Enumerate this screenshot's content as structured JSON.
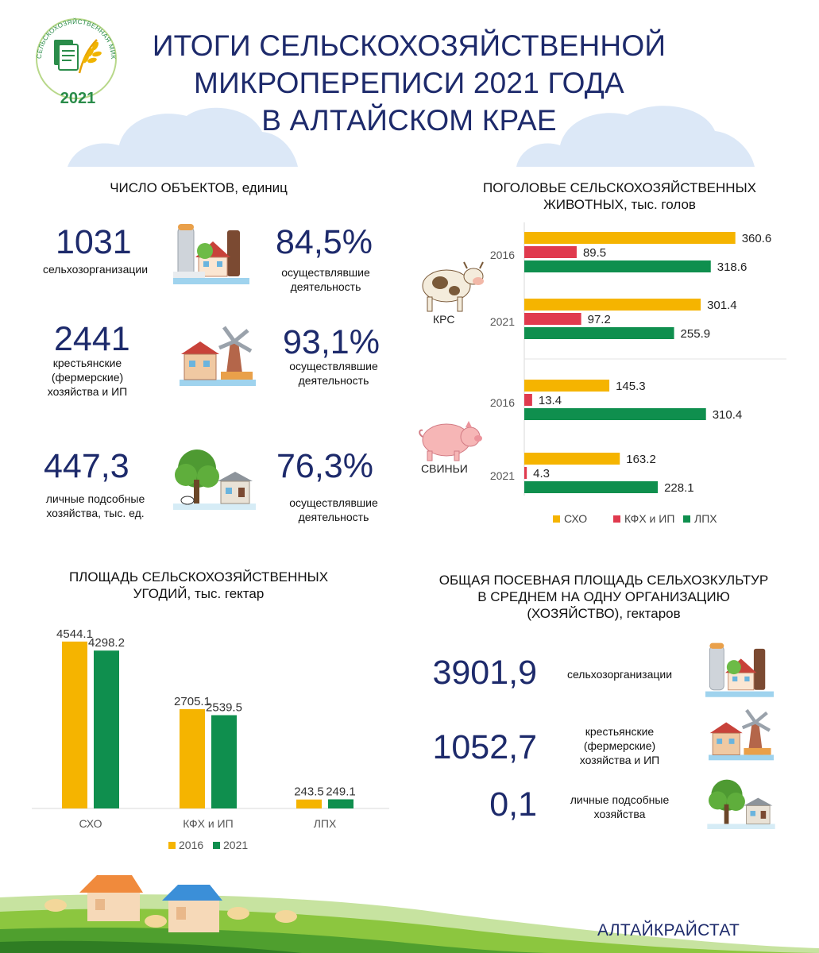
{
  "header": {
    "title_lines": [
      "ИТОГИ СЕЛЬСКОХОЗЯЙСТВЕННОЙ",
      "МИКРОПЕРЕПИСИ 2021 ГОДА",
      "В АЛТАЙСКОМ КРАЕ"
    ],
    "logo_text": "СЕЛЬСКОХОЗЯЙСТВЕННАЯ МИКРОПЕРЕПИСЬ",
    "logo_year": "2021"
  },
  "objects": {
    "title": "ЧИСЛО ОБЪЕКТОВ, единиц",
    "rows": [
      {
        "value": "1031",
        "label_lines": [
          "сельхозорганизации"
        ],
        "percent": "84,5%",
        "percent_lines": [
          "осуществлявшие",
          "деятельность"
        ]
      },
      {
        "value": "2441",
        "label_lines": [
          "крестьянские",
          "(фермерские)",
          "хозяйства и ИП"
        ],
        "percent": "93,1%",
        "percent_lines": [
          "осуществлявшие",
          "деятельность"
        ]
      },
      {
        "value": "447,3",
        "label_lines": [
          "личные подсобные",
          "хозяйства, тыс. ед."
        ],
        "percent": "76,3%",
        "percent_lines": [
          "осуществлявшие",
          "деятельность"
        ]
      }
    ]
  },
  "livestock_title_lines": [
    "ПОГОЛОВЬЕ СЕЛЬСКОХОЗЯЙСТВЕННЫХ",
    "ЖИВОТНЫХ, тыс. голов"
  ],
  "land_title_lines": [
    "ПЛОЩАДЬ СЕЛЬСКОХОЗЯЙСТВЕННЫХ",
    "УГОДИЙ, тыс. гектар"
  ],
  "sown": {
    "title_lines": [
      "ОБЩАЯ ПОСЕВНАЯ  ПЛОЩАДЬ СЕЛЬХОЗКУЛЬТУР",
      "В СРЕДНЕМ НА ОДНУ ОРГАНИЗАЦИЮ",
      "(ХОЗЯЙСТВО), гектаров"
    ],
    "rows": [
      {
        "value": "3901,9",
        "label_lines": [
          "сельхозорганизации"
        ]
      },
      {
        "value": "1052,7",
        "label_lines": [
          "крестьянские",
          "(фермерские)",
          "хозяйства и ИП"
        ]
      },
      {
        "value": "0,1",
        "label_lines": [
          "личные подсобные",
          "хозяйства"
        ]
      }
    ]
  },
  "footer": {
    "org": "АЛТАЙКРАЙСТАТ"
  },
  "colors": {
    "sxo": "#f5b400",
    "kfh": "#e03a4e",
    "lph": "#0f8f4e",
    "title": "#1d2a6b",
    "cloud": "#dce8f7"
  },
  "chart_data": [
    {
      "type": "bar",
      "orientation": "horizontal",
      "groups": [
        {
          "name": "КРС",
          "years": [
            {
              "year": "2016",
              "values": [
                360.6,
                89.5,
                318.6
              ]
            },
            {
              "year": "2021",
              "values": [
                301.4,
                97.2,
                255.9
              ]
            }
          ]
        },
        {
          "name": "СВИНЬИ",
          "years": [
            {
              "year": "2016",
              "values": [
                145.3,
                13.4,
                310.4
              ]
            },
            {
              "year": "2021",
              "values": [
                163.2,
                4.3,
                228.1
              ]
            }
          ]
        }
      ],
      "series": [
        {
          "name": "СХО"
        },
        {
          "name": "КФХ и ИП"
        },
        {
          "name": "ЛПХ"
        }
      ],
      "xlim": [
        0,
        380
      ],
      "legend": "bottom"
    },
    {
      "type": "bar",
      "categories": [
        "СХО",
        "КФХ и ИП",
        "ЛПХ"
      ],
      "series": [
        {
          "name": "2016",
          "values": [
            4544.1,
            2705.1,
            243.5
          ]
        },
        {
          "name": "2021",
          "values": [
            4298.2,
            2539.5,
            249.1
          ]
        }
      ],
      "ylim": [
        0,
        4800
      ],
      "legend": "bottom"
    }
  ]
}
